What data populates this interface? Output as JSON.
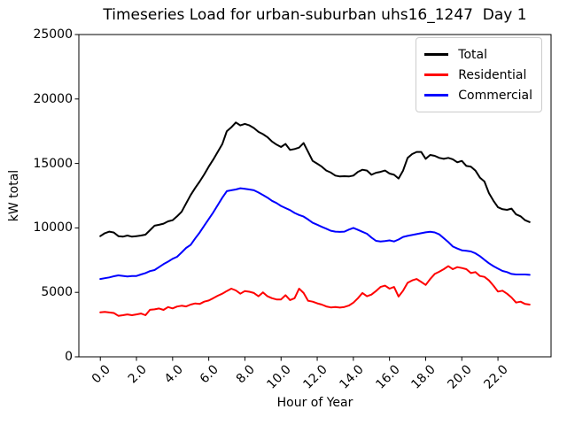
{
  "chart_data": {
    "type": "line",
    "title": "Timeseries Load for urban-suburban uhs16_1247  Day 1",
    "xlabel": "Hour of Year",
    "ylabel": "kW total",
    "xlim": [
      -1.1875,
      24.9375
    ],
    "ylim": [
      0,
      25000
    ],
    "grid": false,
    "legend_position": "upper right",
    "xticks": {
      "values": [
        0,
        2,
        4,
        6,
        8,
        10,
        12,
        14,
        16,
        18,
        20,
        22
      ],
      "labels": [
        "0.0",
        "2.0",
        "4.0",
        "6.0",
        "8.0",
        "10.0",
        "12.0",
        "14.0",
        "16.0",
        "18.0",
        "20.0",
        "22.0"
      ]
    },
    "yticks": {
      "values": [
        0,
        5000,
        10000,
        15000,
        20000,
        25000
      ],
      "labels": [
        "0",
        "5000",
        "10000",
        "15000",
        "20000",
        "25000"
      ]
    },
    "x": [
      0.0,
      0.25,
      0.5,
      0.75,
      1.0,
      1.25,
      1.5,
      1.75,
      2.0,
      2.25,
      2.5,
      2.75,
      3.0,
      3.25,
      3.5,
      3.75,
      4.0,
      4.25,
      4.5,
      4.75,
      5.0,
      5.25,
      5.5,
      5.75,
      6.0,
      6.25,
      6.5,
      6.75,
      7.0,
      7.25,
      7.5,
      7.75,
      8.0,
      8.25,
      8.5,
      8.75,
      9.0,
      9.25,
      9.5,
      9.75,
      10.0,
      10.25,
      10.5,
      10.75,
      11.0,
      11.25,
      11.5,
      11.75,
      12.0,
      12.25,
      12.5,
      12.75,
      13.0,
      13.25,
      13.5,
      13.75,
      14.0,
      14.25,
      14.5,
      14.75,
      15.0,
      15.25,
      15.5,
      15.75,
      16.0,
      16.25,
      16.5,
      16.75,
      17.0,
      17.25,
      17.5,
      17.75,
      18.0,
      18.25,
      18.5,
      18.75,
      19.0,
      19.25,
      19.5,
      19.75,
      20.0,
      20.25,
      20.5,
      20.75,
      21.0,
      21.25,
      21.5,
      21.75,
      22.0,
      22.25,
      22.5,
      22.75,
      23.0,
      23.25,
      23.5,
      23.75
    ],
    "series": [
      {
        "name": "Total",
        "color": "#000000",
        "values": [
          9360,
          9590,
          9710,
          9640,
          9360,
          9320,
          9410,
          9320,
          9360,
          9410,
          9480,
          9820,
          10170,
          10240,
          10330,
          10510,
          10600,
          10900,
          11250,
          11900,
          12550,
          13100,
          13600,
          14150,
          14750,
          15300,
          15900,
          16500,
          17500,
          17800,
          18180,
          17950,
          18070,
          17950,
          17750,
          17450,
          17270,
          17040,
          16700,
          16460,
          16280,
          16510,
          16050,
          16120,
          16230,
          16580,
          15890,
          15200,
          14980,
          14750,
          14450,
          14290,
          14060,
          13990,
          14010,
          13990,
          14060,
          14350,
          14510,
          14450,
          14120,
          14280,
          14350,
          14450,
          14220,
          14120,
          13830,
          14450,
          15430,
          15730,
          15890,
          15890,
          15360,
          15660,
          15590,
          15430,
          15360,
          15430,
          15320,
          15090,
          15200,
          14810,
          14750,
          14450,
          13900,
          13600,
          12700,
          12100,
          11600,
          11450,
          11400,
          11500,
          11050,
          10900,
          10600,
          10450
        ]
      },
      {
        "name": "Residential",
        "color": "#ff0000",
        "values": [
          3450,
          3480,
          3440,
          3400,
          3180,
          3230,
          3290,
          3230,
          3290,
          3360,
          3230,
          3650,
          3680,
          3750,
          3640,
          3860,
          3760,
          3900,
          3960,
          3910,
          4050,
          4140,
          4100,
          4280,
          4370,
          4550,
          4740,
          4900,
          5100,
          5290,
          5150,
          4900,
          5100,
          5050,
          4950,
          4700,
          5000,
          4700,
          4550,
          4450,
          4450,
          4780,
          4400,
          4550,
          5290,
          4950,
          4350,
          4280,
          4150,
          4050,
          3910,
          3830,
          3870,
          3820,
          3870,
          3980,
          4200,
          4550,
          4950,
          4700,
          4830,
          5100,
          5420,
          5520,
          5290,
          5420,
          4680,
          5130,
          5740,
          5930,
          6040,
          5810,
          5580,
          6040,
          6430,
          6600,
          6800,
          7030,
          6800,
          6960,
          6890,
          6800,
          6500,
          6570,
          6270,
          6200,
          5930,
          5520,
          5060,
          5130,
          4900,
          4600,
          4210,
          4280,
          4100,
          4050
        ]
      },
      {
        "name": "Commercial",
        "color": "#0000ff",
        "values": [
          6040,
          6100,
          6160,
          6250,
          6320,
          6280,
          6230,
          6270,
          6270,
          6390,
          6500,
          6650,
          6730,
          6960,
          7190,
          7380,
          7600,
          7760,
          8100,
          8450,
          8680,
          9180,
          9640,
          10170,
          10690,
          11200,
          11770,
          12340,
          12850,
          12920,
          12980,
          13075,
          13030,
          12980,
          12920,
          12750,
          12550,
          12350,
          12100,
          11930,
          11700,
          11540,
          11380,
          11160,
          11000,
          10880,
          10650,
          10400,
          10250,
          10080,
          9940,
          9780,
          9710,
          9690,
          9710,
          9870,
          10000,
          9850,
          9700,
          9550,
          9250,
          9000,
          8950,
          8980,
          9030,
          8950,
          9100,
          9300,
          9380,
          9450,
          9520,
          9590,
          9660,
          9700,
          9650,
          9500,
          9200,
          8900,
          8560,
          8400,
          8260,
          8220,
          8170,
          8030,
          7810,
          7530,
          7260,
          7030,
          6840,
          6660,
          6570,
          6430,
          6390,
          6390,
          6390,
          6360
        ]
      }
    ]
  }
}
